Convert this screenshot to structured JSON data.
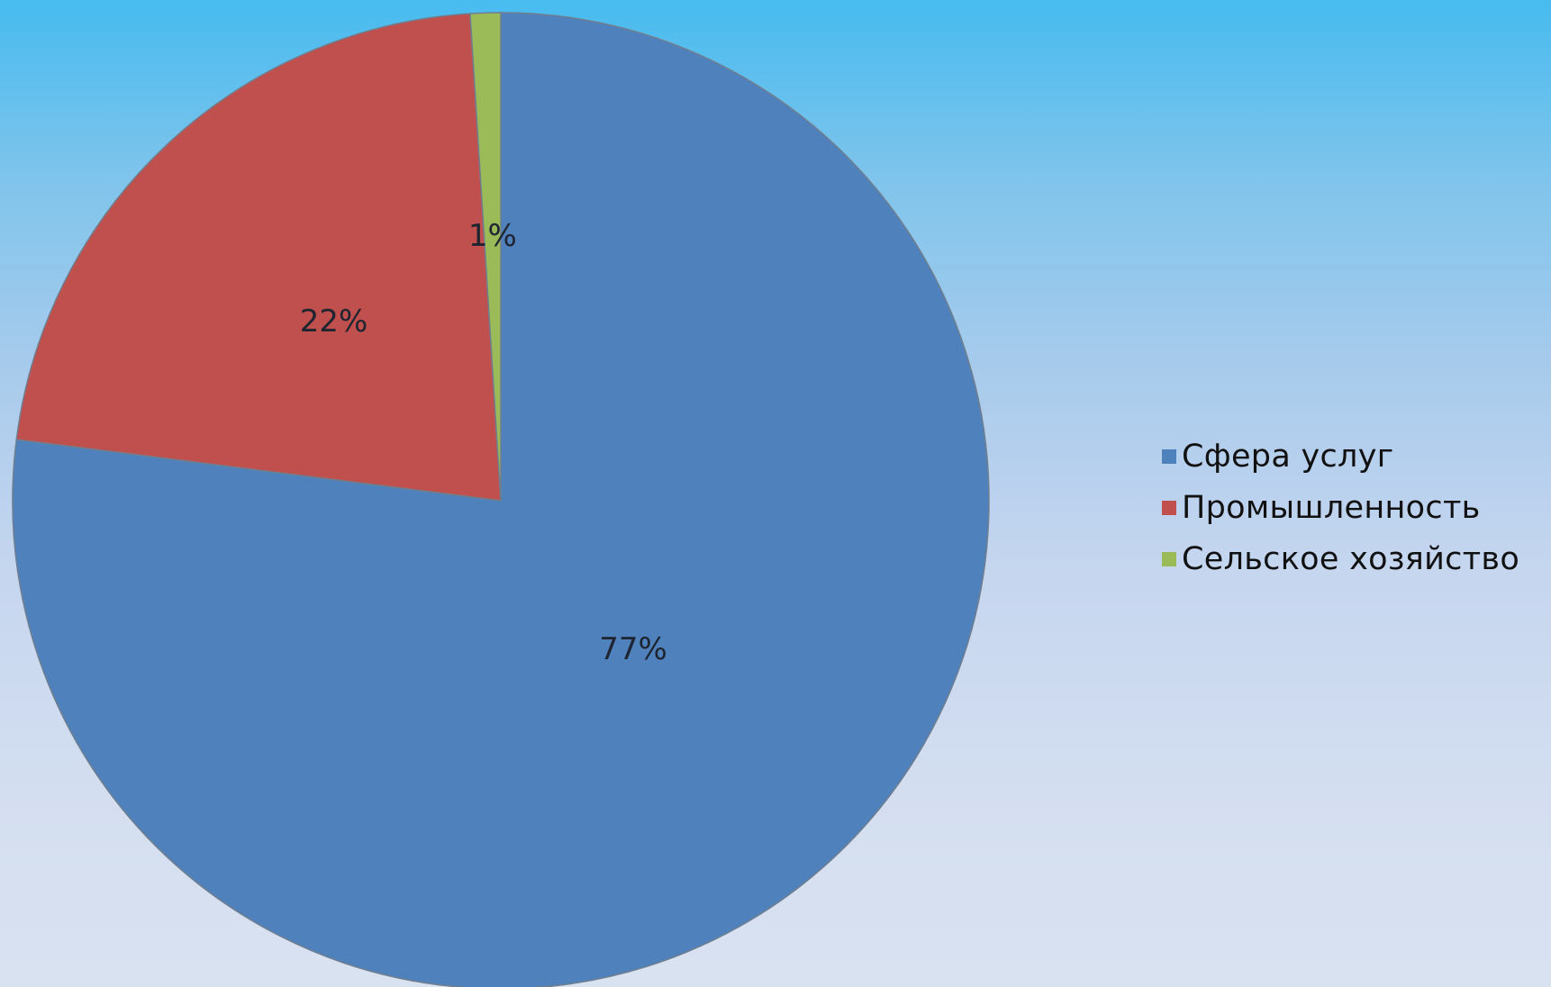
{
  "chart_data": {
    "type": "pie",
    "title": "",
    "slices": [
      {
        "label": "Сфера услуг",
        "value": 77,
        "display": "77%",
        "color": "#4f81bd"
      },
      {
        "label": "Промышленность",
        "value": 22,
        "display": "22%",
        "color": "#c0504d"
      },
      {
        "label": "Сельское хозяйство",
        "value": 1,
        "display": "1%",
        "color": "#9bbb59"
      }
    ],
    "start_angle": "12 o'clock",
    "direction": "clockwise",
    "legend_position": "right"
  }
}
